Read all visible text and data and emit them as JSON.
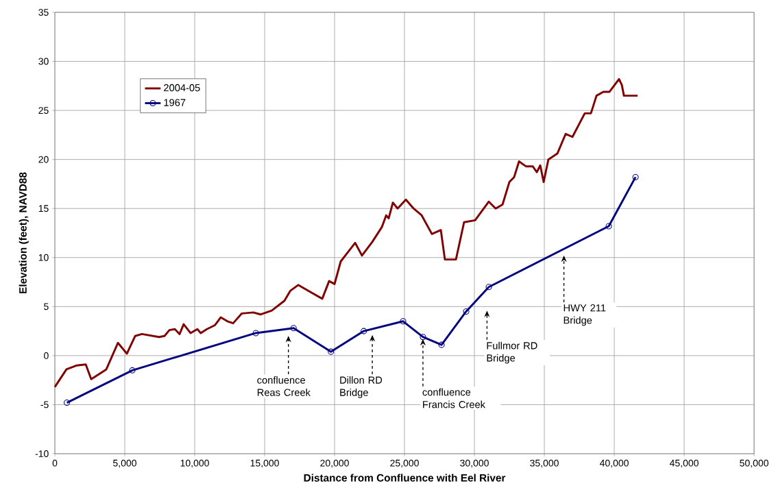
{
  "chart_data": {
    "type": "line",
    "xlabel": "Distance from Confluence with Eel River",
    "ylabel": "Elevation (feet), NAVD88",
    "xlim": [
      0,
      50000
    ],
    "ylim": [
      -10,
      35
    ],
    "xticks": [
      0,
      {
        "value": 5000,
        "label": "5,000"
      },
      {
        "value": 10000,
        "label": "10,000"
      },
      {
        "value": 15000,
        "label": "15,000"
      },
      {
        "value": 20000,
        "label": "20,000"
      },
      {
        "value": 25000,
        "label": "25,000"
      },
      {
        "value": 30000,
        "label": "30,000"
      },
      {
        "value": 35000,
        "label": "35,000"
      },
      {
        "value": 40000,
        "label": "40,000"
      },
      {
        "value": 45000,
        "label": "45,000"
      },
      {
        "value": 50000,
        "label": "50,000"
      }
    ],
    "yticks": [
      -10,
      -5,
      0,
      5,
      10,
      15,
      20,
      25,
      30,
      35
    ],
    "grid": true,
    "legend": "top left",
    "line_style": "solid",
    "series": [
      {
        "name": "2004-05",
        "color": "#800000",
        "marker": "none",
        "x": [
          0,
          830,
          1570,
          2210,
          2600,
          3680,
          4510,
          5150,
          5740,
          6230,
          7450,
          7840,
          8190,
          8580,
          8920,
          9210,
          9700,
          10190,
          10430,
          10870,
          11440,
          11860,
          12340,
          12750,
          13370,
          14200,
          14700,
          15510,
          16420,
          16830,
          17400,
          18140,
          19120,
          19610,
          20000,
          20440,
          20930,
          21470,
          21960,
          22700,
          23380,
          23690,
          23870,
          24170,
          24510,
          25100,
          25650,
          26230,
          26960,
          27600,
          27890,
          28680,
          29260,
          30050,
          31030,
          31520,
          32010,
          32500,
          32840,
          33190,
          33680,
          34170,
          34460,
          34710,
          34950,
          35290,
          35930,
          36520,
          37010,
          37890,
          38330,
          38730,
          39220,
          39660,
          40340,
          40540,
          40690,
          41670
        ],
        "values": [
          -3.2,
          -1.4,
          -1.0,
          -0.9,
          -2.4,
          -1.4,
          1.3,
          0.2,
          2.0,
          2.2,
          1.9,
          2.0,
          2.6,
          2.7,
          2.2,
          3.2,
          2.3,
          2.7,
          2.3,
          2.7,
          3.1,
          3.9,
          3.5,
          3.3,
          4.3,
          4.4,
          4.2,
          4.6,
          5.6,
          6.6,
          7.2,
          6.6,
          5.8,
          7.6,
          7.3,
          9.6,
          10.5,
          11.5,
          10.2,
          11.6,
          13.1,
          14.3,
          14.0,
          15.6,
          15.0,
          15.9,
          15.0,
          14.3,
          12.4,
          12.8,
          9.8,
          9.8,
          13.6,
          13.8,
          15.7,
          15.0,
          15.4,
          17.7,
          18.2,
          19.8,
          19.3,
          19.3,
          18.7,
          19.4,
          17.7,
          20.0,
          20.6,
          22.6,
          22.3,
          24.7,
          24.7,
          26.5,
          26.9,
          26.9,
          28.2,
          27.6,
          26.5,
          26.5
        ]
      },
      {
        "name": "1967",
        "color": "#000080",
        "marker": "circle",
        "x": [
          860,
          5540,
          14370,
          17070,
          19740,
          22090,
          24900,
          26320,
          27650,
          29410,
          31030,
          39610,
          41520
        ],
        "values": [
          -4.8,
          -1.5,
          2.3,
          2.8,
          0.4,
          2.5,
          3.5,
          1.9,
          1.1,
          4.5,
          7.0,
          13.2,
          18.2
        ]
      }
    ],
    "annotations": [
      "confluence Reas Creek",
      "Dillon RD Bridge",
      {
        "text": "confluence Francis Creek",
        "x": 26320,
        "y": 1.9
      },
      "Fullmor RD Bridge",
      "HWY 211 Bridge"
    ]
  }
}
